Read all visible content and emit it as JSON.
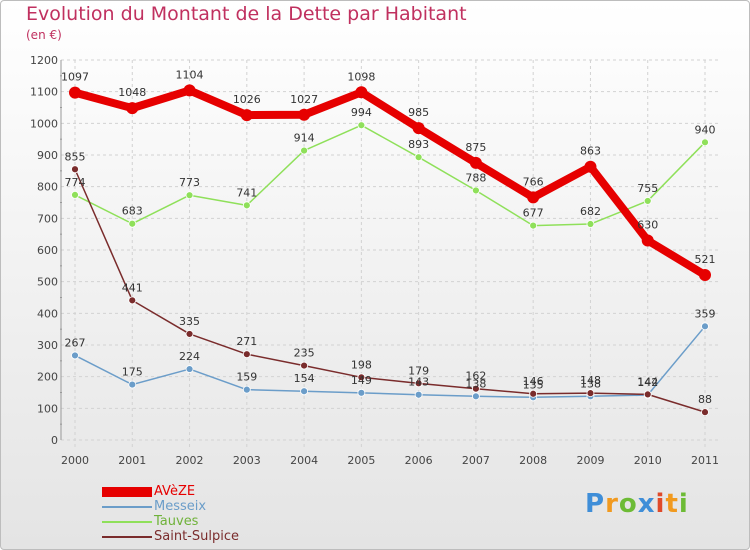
{
  "title": "Evolution du Montant de la Dette par Habitant",
  "subtitle": "(en €)",
  "brand": {
    "letters": [
      "P",
      "r",
      "o",
      "x",
      "i",
      "t",
      "i"
    ],
    "colors": [
      "#3f8ed8",
      "#f19a1f",
      "#6dbb35",
      "#3f8ed8",
      "#e04a2a",
      "#f19a1f",
      "#6dbb35"
    ]
  },
  "chart_data": {
    "type": "line",
    "title": "Evolution du Montant de la Dette par Habitant",
    "ylabel": "(en €)",
    "xlabel": "",
    "x": [
      "2000",
      "2001",
      "2002",
      "2003",
      "2004",
      "2005",
      "2006",
      "2007",
      "2008",
      "2009",
      "2010",
      "2011"
    ],
    "ylim": [
      0,
      1200
    ],
    "yticks": [
      0,
      100,
      200,
      300,
      400,
      500,
      600,
      700,
      800,
      900,
      1000,
      1100,
      1200
    ],
    "grid": true,
    "legend_position": "bottom-left",
    "series": [
      {
        "name": "AVèZE",
        "color": "#e60000",
        "values": [
          1097,
          1048,
          1104,
          1026,
          1027,
          1098,
          985,
          875,
          766,
          863,
          630,
          521
        ],
        "labels": [
          "1097",
          "1048",
          "1104",
          "1026",
          "1027",
          "1098",
          "985",
          "875",
          "766",
          "863",
          "630",
          "521"
        ]
      },
      {
        "name": "Messeix",
        "color": "#6b9dc9",
        "values": [
          267,
          175,
          224,
          159,
          154,
          149,
          143,
          138,
          135,
          138,
          142,
          359
        ],
        "labels": [
          "267",
          "175",
          "224",
          "159",
          "154",
          "149",
          "143",
          "138",
          "135",
          "138",
          "142",
          "359"
        ]
      },
      {
        "name": "Tauves",
        "color": "#8fe05a",
        "values": [
          774,
          683,
          773,
          741,
          914,
          994,
          893,
          788,
          677,
          682,
          755,
          940
        ],
        "labels": [
          "774",
          "683",
          "773",
          "741",
          "914",
          "994",
          "893",
          "788",
          "677",
          "682",
          "755",
          "940"
        ]
      },
      {
        "name": "Saint-Sulpice",
        "color": "#7a2c2c",
        "values": [
          855,
          441,
          335,
          271,
          235,
          198,
          179,
          162,
          146,
          148,
          144,
          88
        ],
        "labels": [
          "855",
          "441",
          "335",
          "271",
          "235",
          "198",
          "179",
          "162",
          "146",
          "148",
          "144",
          "88"
        ]
      }
    ]
  }
}
